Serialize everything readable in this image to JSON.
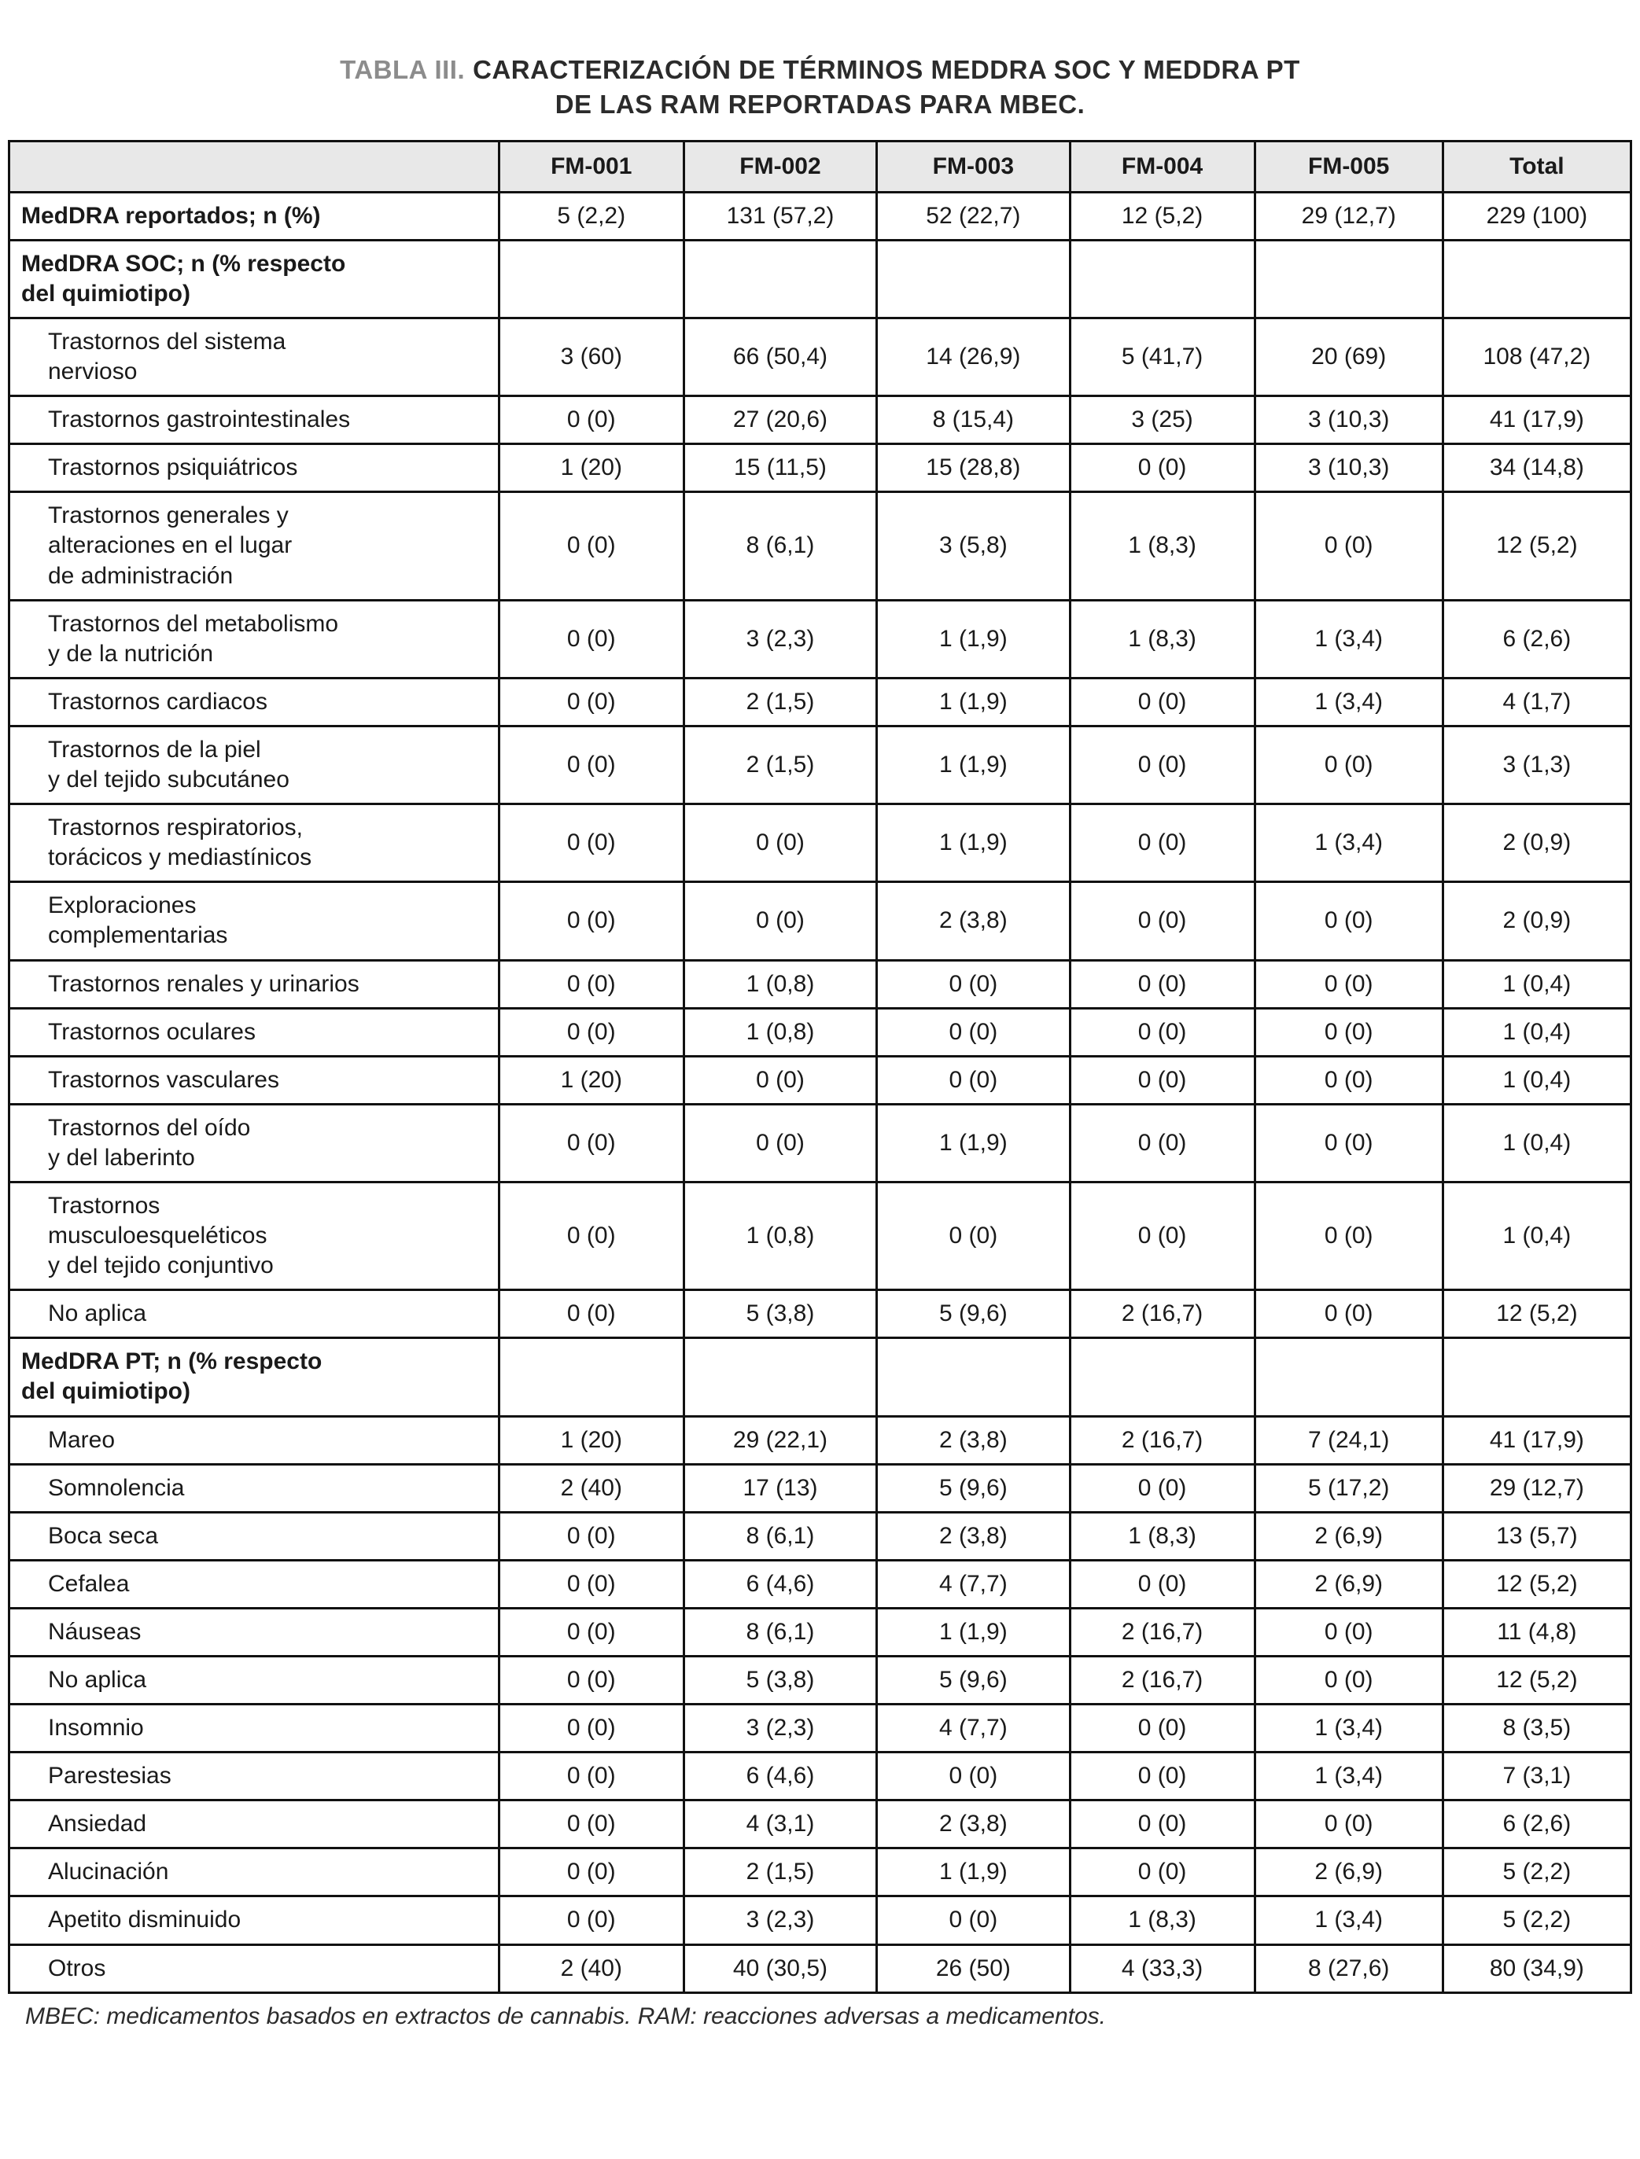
{
  "title": {
    "label": "TABLA III.",
    "text": "CARACTERIZACIÓN DE TÉRMINOS MEDDRA SOC Y MEDDRA PT\nDE LAS RAM REPORTADAS PARA MBEC."
  },
  "footnote": "MBEC: medicamentos basados en extractos de cannabis. RAM: reacciones adversas a medicamentos.",
  "chart_data": {
    "type": "table",
    "columns": [
      "",
      "FM-001",
      "FM-002",
      "FM-003",
      "FM-004",
      "FM-005",
      "Total"
    ],
    "rows": [
      {
        "label": "MedDRA reportados; n (%)",
        "bold": true,
        "indent": false,
        "values": [
          "5 (2,2)",
          "131 (57,2)",
          "52 (22,7)",
          "12 (5,2)",
          "29 (12,7)",
          "229 (100)"
        ]
      },
      {
        "label": "MedDRA SOC; n (% respecto\ndel quimiotipo)",
        "bold": true,
        "indent": false,
        "values": [
          "",
          "",
          "",
          "",
          "",
          ""
        ]
      },
      {
        "label": "Trastornos del sistema\nnervioso",
        "bold": false,
        "indent": true,
        "values": [
          "3 (60)",
          "66 (50,4)",
          "14 (26,9)",
          "5 (41,7)",
          "20 (69)",
          "108 (47,2)"
        ]
      },
      {
        "label": "Trastornos gastrointestinales",
        "bold": false,
        "indent": true,
        "values": [
          "0 (0)",
          "27 (20,6)",
          "8 (15,4)",
          "3 (25)",
          "3 (10,3)",
          "41 (17,9)"
        ]
      },
      {
        "label": "Trastornos psiquiátricos",
        "bold": false,
        "indent": true,
        "values": [
          "1 (20)",
          "15 (11,5)",
          "15 (28,8)",
          "0 (0)",
          "3 (10,3)",
          "34 (14,8)"
        ]
      },
      {
        "label": "Trastornos generales y\nalteraciones en el lugar\nde administración",
        "bold": false,
        "indent": true,
        "values": [
          "0 (0)",
          "8 (6,1)",
          "3 (5,8)",
          "1 (8,3)",
          "0 (0)",
          "12 (5,2)"
        ]
      },
      {
        "label": "Trastornos del metabolismo\ny de la nutrición",
        "bold": false,
        "indent": true,
        "values": [
          "0 (0)",
          "3 (2,3)",
          "1 (1,9)",
          "1 (8,3)",
          "1 (3,4)",
          "6 (2,6)"
        ]
      },
      {
        "label": "Trastornos cardiacos",
        "bold": false,
        "indent": true,
        "values": [
          "0 (0)",
          "2 (1,5)",
          "1 (1,9)",
          "0 (0)",
          "1 (3,4)",
          "4 (1,7)"
        ]
      },
      {
        "label": "Trastornos de la piel\ny del tejido subcutáneo",
        "bold": false,
        "indent": true,
        "values": [
          "0 (0)",
          "2 (1,5)",
          "1 (1,9)",
          "0 (0)",
          "0 (0)",
          "3 (1,3)"
        ]
      },
      {
        "label": "Trastornos respiratorios,\ntorácicos y mediastínicos",
        "bold": false,
        "indent": true,
        "values": [
          "0 (0)",
          "0 (0)",
          "1 (1,9)",
          "0 (0)",
          "1 (3,4)",
          "2 (0,9)"
        ]
      },
      {
        "label": "Exploraciones\ncomplementarias",
        "bold": false,
        "indent": true,
        "values": [
          "0 (0)",
          "0 (0)",
          "2 (3,8)",
          "0 (0)",
          "0 (0)",
          "2 (0,9)"
        ]
      },
      {
        "label": "Trastornos renales y urinarios",
        "bold": false,
        "indent": true,
        "values": [
          "0 (0)",
          "1 (0,8)",
          "0 (0)",
          "0 (0)",
          "0 (0)",
          "1 (0,4)"
        ]
      },
      {
        "label": "Trastornos oculares",
        "bold": false,
        "indent": true,
        "values": [
          "0 (0)",
          "1 (0,8)",
          "0 (0)",
          "0 (0)",
          "0 (0)",
          "1 (0,4)"
        ]
      },
      {
        "label": "Trastornos vasculares",
        "bold": false,
        "indent": true,
        "values": [
          "1 (20)",
          "0 (0)",
          "0 (0)",
          "0 (0)",
          "0 (0)",
          "1 (0,4)"
        ]
      },
      {
        "label": "Trastornos del oído\ny del laberinto",
        "bold": false,
        "indent": true,
        "values": [
          "0 (0)",
          "0 (0)",
          "1 (1,9)",
          "0 (0)",
          "0 (0)",
          "1 (0,4)"
        ]
      },
      {
        "label": "Trastornos\nmusculoesqueléticos\ny del tejido conjuntivo",
        "bold": false,
        "indent": true,
        "values": [
          "0 (0)",
          "1 (0,8)",
          "0 (0)",
          "0 (0)",
          "0 (0)",
          "1 (0,4)"
        ]
      },
      {
        "label": "No aplica",
        "bold": false,
        "indent": true,
        "values": [
          "0 (0)",
          "5 (3,8)",
          "5 (9,6)",
          "2 (16,7)",
          "0 (0)",
          "12 (5,2)"
        ]
      },
      {
        "label": "MedDRA PT; n (% respecto\ndel quimiotipo)",
        "bold": true,
        "indent": false,
        "values": [
          "",
          "",
          "",
          "",
          "",
          ""
        ]
      },
      {
        "label": "Mareo",
        "bold": false,
        "indent": true,
        "values": [
          "1 (20)",
          "29 (22,1)",
          "2 (3,8)",
          "2 (16,7)",
          "7 (24,1)",
          "41 (17,9)"
        ]
      },
      {
        "label": "Somnolencia",
        "bold": false,
        "indent": true,
        "values": [
          "2 (40)",
          "17 (13)",
          "5 (9,6)",
          "0 (0)",
          "5 (17,2)",
          "29 (12,7)"
        ]
      },
      {
        "label": "Boca seca",
        "bold": false,
        "indent": true,
        "values": [
          "0 (0)",
          "8 (6,1)",
          "2 (3,8)",
          "1 (8,3)",
          "2 (6,9)",
          "13 (5,7)"
        ]
      },
      {
        "label": "Cefalea",
        "bold": false,
        "indent": true,
        "values": [
          "0 (0)",
          "6 (4,6)",
          "4 (7,7)",
          "0 (0)",
          "2 (6,9)",
          "12 (5,2)"
        ]
      },
      {
        "label": "Náuseas",
        "bold": false,
        "indent": true,
        "values": [
          "0 (0)",
          "8 (6,1)",
          "1 (1,9)",
          "2 (16,7)",
          "0 (0)",
          "11 (4,8)"
        ]
      },
      {
        "label": "No aplica",
        "bold": false,
        "indent": true,
        "values": [
          "0 (0)",
          "5 (3,8)",
          "5 (9,6)",
          "2 (16,7)",
          "0 (0)",
          "12 (5,2)"
        ]
      },
      {
        "label": "Insomnio",
        "bold": false,
        "indent": true,
        "values": [
          "0 (0)",
          "3 (2,3)",
          "4 (7,7)",
          "0 (0)",
          "1 (3,4)",
          "8 (3,5)"
        ]
      },
      {
        "label": "Parestesias",
        "bold": false,
        "indent": true,
        "values": [
          "0 (0)",
          "6 (4,6)",
          "0 (0)",
          "0 (0)",
          "1 (3,4)",
          "7 (3,1)"
        ]
      },
      {
        "label": "Ansiedad",
        "bold": false,
        "indent": true,
        "values": [
          "0 (0)",
          "4 (3,1)",
          "2 (3,8)",
          "0 (0)",
          "0 (0)",
          "6 (2,6)"
        ]
      },
      {
        "label": "Alucinación",
        "bold": false,
        "indent": true,
        "values": [
          "0 (0)",
          "2 (1,5)",
          "1 (1,9)",
          "0 (0)",
          "2 (6,9)",
          "5 (2,2)"
        ]
      },
      {
        "label": "Apetito disminuido",
        "bold": false,
        "indent": true,
        "values": [
          "0 (0)",
          "3 (2,3)",
          "0 (0)",
          "1 (8,3)",
          "1 (3,4)",
          "5 (2,2)"
        ]
      },
      {
        "label": "Otros",
        "bold": false,
        "indent": true,
        "values": [
          "2 (40)",
          "40 (30,5)",
          "26 (50)",
          "4 (33,3)",
          "8 (27,6)",
          "80 (34,9)"
        ]
      }
    ],
    "colors": {
      "header_bg": "#e8e8e8",
      "border": "#111111",
      "title_label": "#8c8c8c",
      "text": "#1a1a1a"
    }
  }
}
